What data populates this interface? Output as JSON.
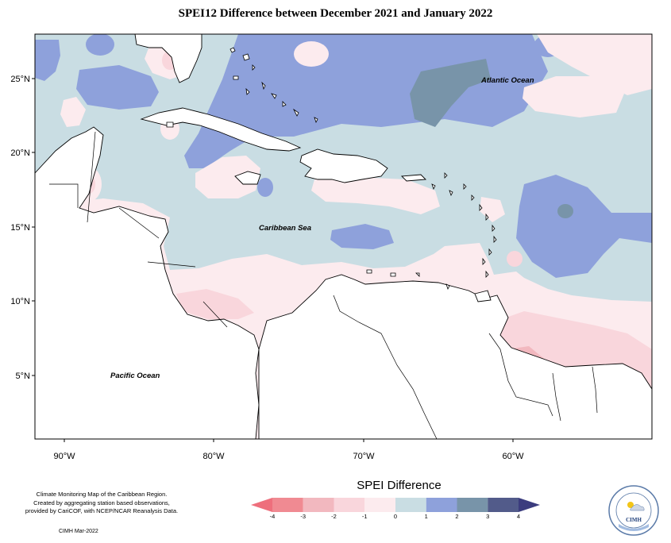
{
  "title": "SPEI12 Difference between December 2021 and January 2022",
  "ocean_labels": {
    "atlantic": "Atlantic Ocean",
    "caribbean": "Caribbean Sea",
    "pacific": "Pacific Ocean"
  },
  "latitude_labels": [
    "25°N",
    "20°N",
    "15°N",
    "10°N",
    "5°N"
  ],
  "longitude_labels": [
    "90°W",
    "80°W",
    "70°W",
    "60°W"
  ],
  "legend": {
    "title": "SPEI Difference",
    "ticks": [
      "-4",
      "-3",
      "-2",
      "-1",
      "0",
      "1",
      "2",
      "3",
      "4"
    ],
    "colors": [
      "#f08a92",
      "#f2b8bf",
      "#f9d6dc",
      "#fcebee",
      "#c9dde3",
      "#8ea1db",
      "#7894a9",
      "#525b8a"
    ],
    "under_color": "#ee6f7c",
    "over_color": "#3b3c7e"
  },
  "credits": {
    "line1": "Climate Monitoring Map of the Caribbean Region.",
    "line2": "Created by aggregating station based observations,",
    "line3": "provided by CariCOF, with NCEP/NCAR Reanalysis Data.",
    "date": "CIMH Mar-2022"
  },
  "logo": {
    "text": "CIMH",
    "ring_text": "Caribbean Institute for Meteorology and Hydrology"
  }
}
